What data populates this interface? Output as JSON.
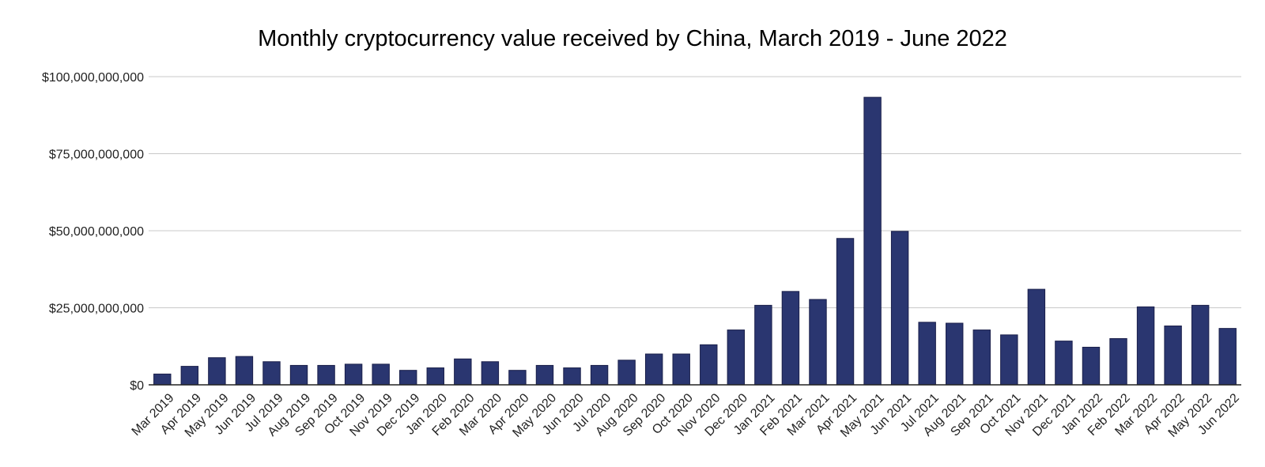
{
  "chart_data": {
    "type": "bar",
    "title": "Monthly cryptocurrency value received by China, March 2019 - June 2022",
    "xlabel": "",
    "ylabel": "",
    "ylim": [
      0,
      100000000000
    ],
    "yticks": [
      0,
      25000000000,
      50000000000,
      75000000000,
      100000000000
    ],
    "ytick_labels": [
      "$0",
      "$25,000,000,000",
      "$50,000,000,000",
      "$75,000,000,000",
      "$100,000,000,000"
    ],
    "grid": true,
    "bar_color": "#2a3670",
    "categories": [
      "Mar 2019",
      "Apr 2019",
      "May 2019",
      "Jun 2019",
      "Jul 2019",
      "Aug 2019",
      "Sep 2019",
      "Oct 2019",
      "Nov 2019",
      "Dec 2019",
      "Jan 2020",
      "Feb 2020",
      "Mar 2020",
      "Apr 2020",
      "May 2020",
      "Jun 2020",
      "Jul 2020",
      "Aug 2020",
      "Sep 2020",
      "Oct 2020",
      "Nov 2020",
      "Dec 2020",
      "Jan 2021",
      "Feb 2021",
      "Mar 2021",
      "Apr 2021",
      "May 2021",
      "Jun 2021",
      "Jul 2021",
      "Aug 2021",
      "Sep 2021",
      "Oct 2021",
      "Nov 2021",
      "Dec 2021",
      "Jan 2022",
      "Feb 2022",
      "Mar 2022",
      "Apr 2022",
      "May 2022",
      "Jun 2022"
    ],
    "values": [
      3500000000,
      6000000000,
      8800000000,
      9200000000,
      7500000000,
      6300000000,
      6300000000,
      6700000000,
      6700000000,
      4700000000,
      5500000000,
      8400000000,
      7500000000,
      4700000000,
      6300000000,
      5500000000,
      6300000000,
      8000000000,
      10000000000,
      10000000000,
      13000000000,
      17800000000,
      25800000000,
      30300000000,
      27700000000,
      47500000000,
      93300000000,
      49800000000,
      20300000000,
      20000000000,
      17800000000,
      16200000000,
      31000000000,
      14200000000,
      12200000000,
      15000000000,
      25300000000,
      19100000000,
      25800000000,
      18300000000
    ]
  }
}
